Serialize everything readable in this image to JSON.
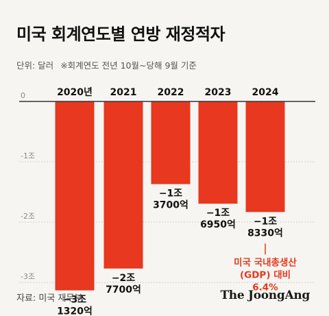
{
  "title": "미국 회계연도별 연방 재정적자",
  "subtitle": {
    "unit": "단위: 달러",
    "note": "※회계연도 전년 10월~당해 9월 기준"
  },
  "chart_data": {
    "type": "bar",
    "categories": [
      "2020년",
      "2021",
      "2022",
      "2023",
      "2024"
    ],
    "values": [
      -3.132,
      -2.77,
      -1.37,
      -1.695,
      -1.833
    ],
    "value_unit": "조 달러",
    "data_labels": [
      [
        "−3조",
        "1320억"
      ],
      [
        "−2조",
        "7700억"
      ],
      [
        "−1조",
        "3700억"
      ],
      [
        "−1조",
        "6950억"
      ],
      [
        "−1조",
        "8330억"
      ]
    ],
    "y_ticks": [
      {
        "value": 0,
        "label": "0"
      },
      {
        "value": -1,
        "label": "-1조"
      },
      {
        "value": -2,
        "label": "-2조"
      },
      {
        "value": -3,
        "label": "-3조"
      }
    ],
    "ylim": [
      -3.3,
      0
    ],
    "grid": true,
    "annotation": {
      "category": "2024",
      "lines": [
        "미국 국내총생산",
        "(GDP) 대비",
        "6.4%"
      ]
    }
  },
  "colors": {
    "bar": "#e8381f",
    "annotation": "#e8381f",
    "grid": "#cfcfcf",
    "axis": "#333333",
    "tick_label": "#888888",
    "background": "#f6f5f1"
  },
  "footer": {
    "source": "자료: 미국 재무부",
    "brand": "The JoongAng"
  }
}
